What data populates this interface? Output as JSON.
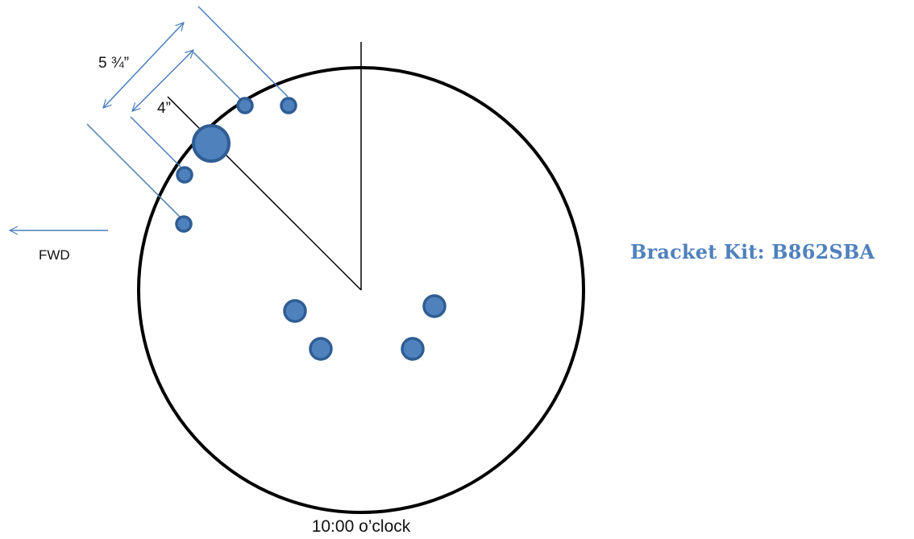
{
  "title": "Bracket Kit: B862SBA",
  "caption": "10:00 o’clock",
  "direction_label": "FWD",
  "dimensions": {
    "outer": "5 ¾”",
    "inner": "4”"
  },
  "colors": {
    "title": "#4f81bd",
    "hole_fill": "#4f81bd",
    "hole_stroke": "#2f5d94",
    "dimension_line": "#4a7ebb",
    "outline": "#000000"
  },
  "icons": {
    "direction_arrow": "arrow-left-icon"
  }
}
